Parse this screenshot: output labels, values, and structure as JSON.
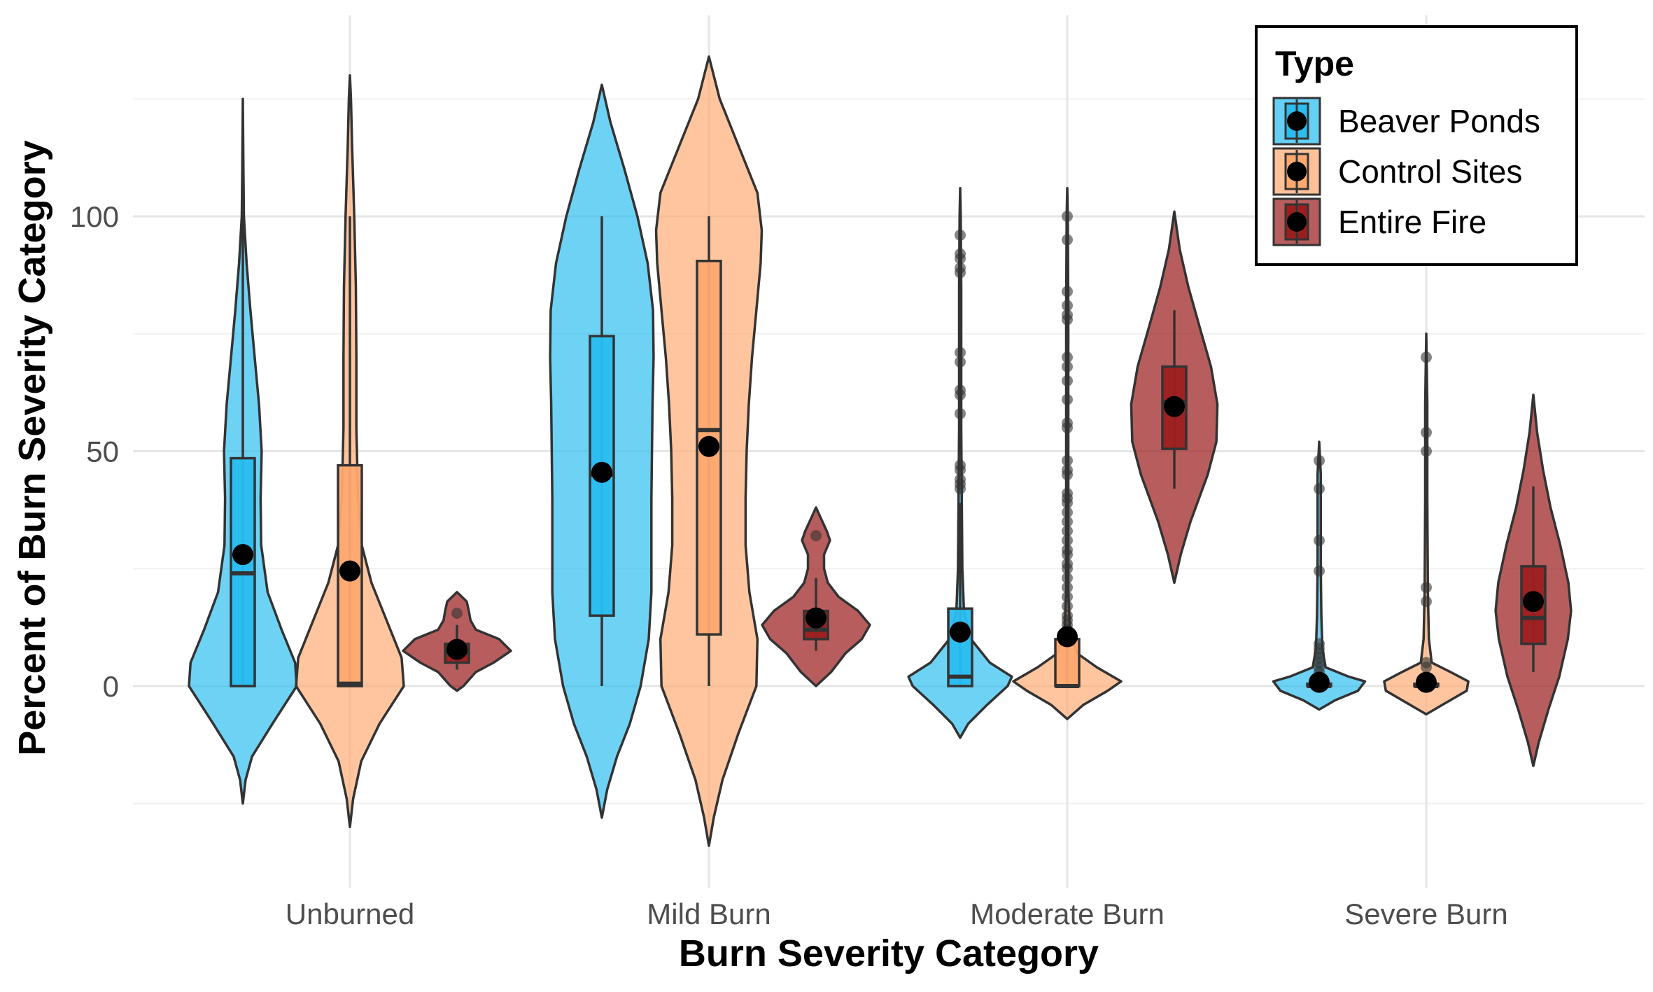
{
  "chart_data": {
    "type": "violin",
    "xlabel": "Burn Severity Category",
    "ylabel": "Percent of Burn Severity Category",
    "categories": [
      "Unburned",
      "Mild Burn",
      "Moderate Burn",
      "Severe Burn"
    ],
    "ylim": [
      -40,
      137
    ],
    "yticks": [
      0,
      50,
      100
    ],
    "grid": true,
    "legend": {
      "title": "Type",
      "position": "top-right"
    },
    "series": [
      {
        "name": "Beaver Ponds",
        "color": "#29bdf0",
        "boxes": [
          {
            "q1": 0,
            "median": 24,
            "q3": 48.5,
            "whisker_low": 0,
            "whisker_high": 100,
            "mean": 28
          },
          {
            "q1": 15,
            "median": 45,
            "q3": 74.5,
            "whisker_low": 0,
            "whisker_high": 100,
            "mean": 45.5
          },
          {
            "q1": 0,
            "median": 2,
            "q3": 16.5,
            "whisker_low": 0,
            "whisker_high": 39,
            "mean": 11.5
          },
          {
            "q1": 0,
            "median": 0,
            "q3": 0.5,
            "whisker_low": 0,
            "whisker_high": 1,
            "mean": 0.8
          }
        ],
        "outliers": [
          [],
          [],
          [
            96,
            92,
            91,
            89,
            88,
            71,
            69,
            63,
            62,
            58,
            47,
            46,
            44,
            43,
            42
          ],
          [
            48,
            42,
            31,
            24.5,
            9,
            8,
            7,
            6,
            5,
            4,
            3
          ]
        ]
      },
      {
        "name": "Control Sites",
        "color": "#ffa970",
        "boxes": [
          {
            "q1": 0,
            "median": 0.5,
            "q3": 47,
            "whisker_low": 0,
            "whisker_high": 100,
            "mean": 24.5
          },
          {
            "q1": 11,
            "median": 54.5,
            "q3": 90.5,
            "whisker_low": 0,
            "whisker_high": 100,
            "mean": 51
          },
          {
            "q1": 0,
            "median": 0,
            "q3": 10,
            "whisker_low": 0,
            "whisker_high": 10,
            "mean": 10.5
          },
          {
            "q1": 0,
            "median": 0,
            "q3": 0.5,
            "whisker_low": 0,
            "whisker_high": 1,
            "mean": 0.8
          }
        ],
        "outliers": [
          [],
          [],
          [
            100,
            95,
            84,
            81,
            79,
            78,
            70,
            68,
            65,
            61,
            56,
            55,
            48,
            46,
            45,
            41,
            40,
            39,
            37,
            35,
            33,
            31,
            29,
            28,
            26,
            25,
            23,
            21,
            19,
            17,
            15,
            14,
            13,
            12
          ],
          [
            70,
            54,
            50,
            21,
            18,
            5,
            4
          ]
        ]
      },
      {
        "name": "Entire Fire",
        "color": "#9c1f1f",
        "boxes": [
          {
            "q1": 5,
            "median": 7,
            "q3": 9,
            "whisker_low": 3.5,
            "whisker_high": 13,
            "mean": 7.8
          },
          {
            "q1": 10,
            "median": 12,
            "q3": 16,
            "whisker_low": 7.5,
            "whisker_high": 23,
            "mean": 14.5
          },
          {
            "q1": 50.5,
            "median": 60.5,
            "q3": 68,
            "whisker_low": 42,
            "whisker_high": 80,
            "mean": 59.5
          },
          {
            "q1": 9,
            "median": 14.5,
            "q3": 25.5,
            "whisker_low": 3,
            "whisker_high": 42.5,
            "mean": 18
          }
        ],
        "outliers": [
          [
            15.5
          ],
          [
            32
          ],
          [],
          []
        ]
      }
    ]
  }
}
